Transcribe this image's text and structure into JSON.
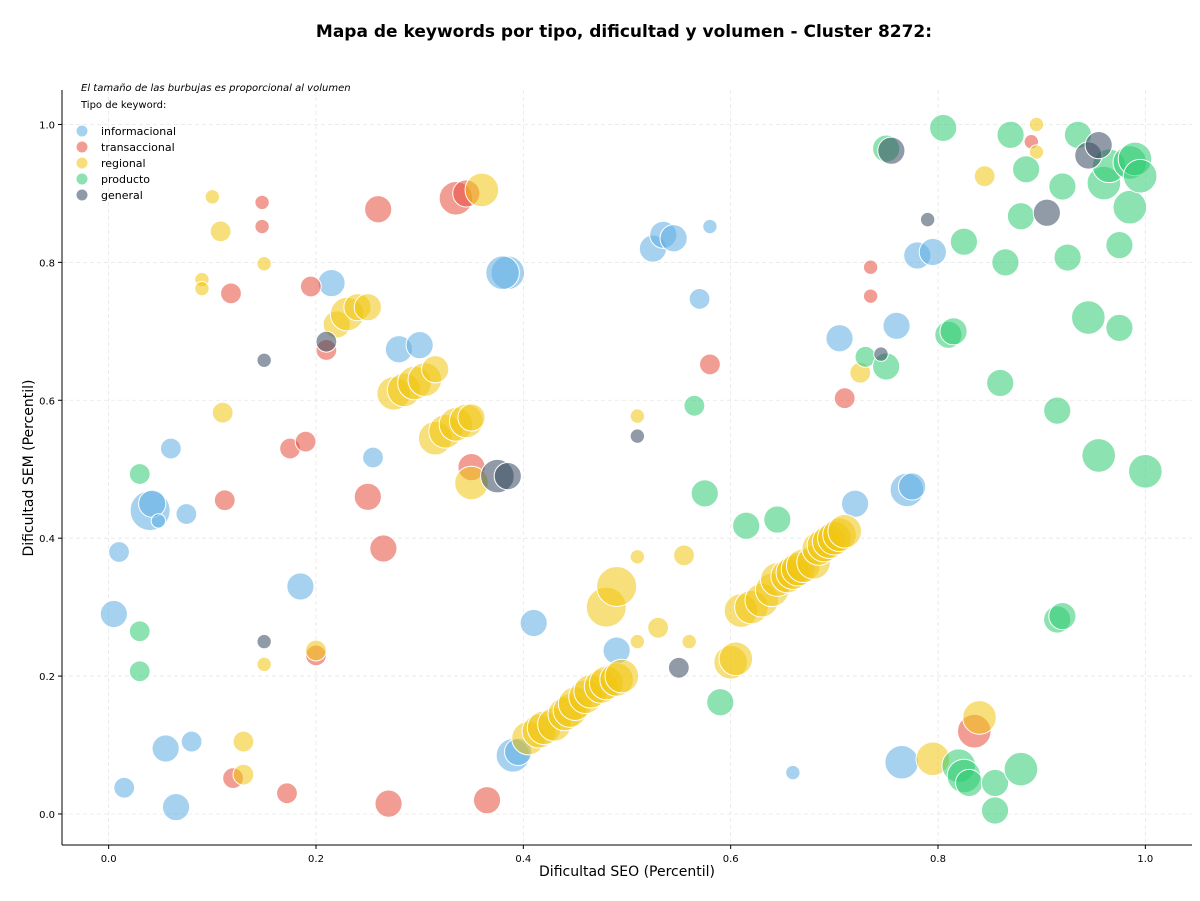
{
  "chart_data": {
    "type": "scatter",
    "title": "Mapa de keywords por tipo, dificultad y volumen - Cluster 8272:",
    "xlabel": "Dificultad SEO (Percentil)",
    "ylabel": "Dificultad SEM (Percentil)",
    "xlim": [
      -0.045,
      1.045
    ],
    "ylim": [
      -0.045,
      1.05
    ],
    "xticks": [
      "0.0",
      "0.2",
      "0.4",
      "0.6",
      "0.8",
      "1.0"
    ],
    "yticks": [
      "0.0",
      "0.2",
      "0.4",
      "0.6",
      "0.8",
      "1.0"
    ],
    "grid": true,
    "note": "El tamaño de las burbujas es proporcional al volumen",
    "legend": {
      "title": "Tipo de keyword:",
      "placement": "top-left",
      "items": [
        {
          "label": "informacional",
          "color": "#5DADE2"
        },
        {
          "label": "transaccional",
          "color": "#E74C3C"
        },
        {
          "label": "regional",
          "color": "#F1C40F"
        },
        {
          "label": "producto",
          "color": "#2ECC71"
        },
        {
          "label": "general",
          "color": "#34495E"
        }
      ]
    },
    "series": [
      {
        "name": "informacional",
        "color": "#5DADE2",
        "points": [
          [
            0.01,
            0.38,
            2
          ],
          [
            0.005,
            0.29,
            3
          ],
          [
            0.015,
            0.038,
            2
          ],
          [
            0.04,
            0.44,
            5
          ],
          [
            0.042,
            0.45,
            3
          ],
          [
            0.048,
            0.425,
            1
          ],
          [
            0.06,
            0.53,
            2
          ],
          [
            0.055,
            0.095,
            3
          ],
          [
            0.075,
            0.435,
            2
          ],
          [
            0.065,
            0.01,
            3
          ],
          [
            0.08,
            0.105,
            2
          ],
          [
            0.185,
            0.33,
            3
          ],
          [
            0.215,
            0.77,
            3
          ],
          [
            0.255,
            0.517,
            2
          ],
          [
            0.28,
            0.674,
            3
          ],
          [
            0.3,
            0.68,
            3
          ],
          [
            0.385,
            0.785,
            4
          ],
          [
            0.38,
            0.785,
            4
          ],
          [
            0.39,
            0.085,
            4
          ],
          [
            0.395,
            0.09,
            3
          ],
          [
            0.41,
            0.277,
            3
          ],
          [
            0.49,
            0.237,
            3
          ],
          [
            0.525,
            0.82,
            3
          ],
          [
            0.535,
            0.84,
            3
          ],
          [
            0.545,
            0.835,
            3
          ],
          [
            0.57,
            0.747,
            2
          ],
          [
            0.58,
            0.852,
            1
          ],
          [
            0.66,
            0.06,
            1
          ],
          [
            0.705,
            0.69,
            3
          ],
          [
            0.72,
            0.45,
            3
          ],
          [
            0.76,
            0.708,
            3
          ],
          [
            0.765,
            0.075,
            4
          ],
          [
            0.77,
            0.47,
            4
          ],
          [
            0.775,
            0.475,
            3
          ],
          [
            0.78,
            0.81,
            3
          ],
          [
            0.795,
            0.815,
            3
          ]
        ]
      },
      {
        "name": "transaccional",
        "color": "#E74C3C",
        "points": [
          [
            0.118,
            0.755,
            2
          ],
          [
            0.148,
            0.887,
            1
          ],
          [
            0.148,
            0.852,
            1
          ],
          [
            0.112,
            0.455,
            2
          ],
          [
            0.12,
            0.052,
            2
          ],
          [
            0.172,
            0.03,
            2
          ],
          [
            0.175,
            0.53,
            2
          ],
          [
            0.19,
            0.54,
            2
          ],
          [
            0.195,
            0.765,
            2
          ],
          [
            0.2,
            0.23,
            2
          ],
          [
            0.21,
            0.673,
            2
          ],
          [
            0.25,
            0.46,
            3
          ],
          [
            0.26,
            0.877,
            3
          ],
          [
            0.265,
            0.385,
            3
          ],
          [
            0.27,
            0.015,
            3
          ],
          [
            0.335,
            0.893,
            4
          ],
          [
            0.345,
            0.9,
            3
          ],
          [
            0.35,
            0.503,
            3
          ],
          [
            0.365,
            0.02,
            3
          ],
          [
            0.58,
            0.652,
            2
          ],
          [
            0.71,
            0.603,
            2
          ],
          [
            0.735,
            0.793,
            1
          ],
          [
            0.735,
            0.751,
            1
          ],
          [
            0.835,
            0.12,
            4
          ],
          [
            0.89,
            0.975,
            1
          ]
        ]
      },
      {
        "name": "regional",
        "color": "#F1C40F",
        "points": [
          [
            0.1,
            0.895,
            1
          ],
          [
            0.108,
            0.845,
            2
          ],
          [
            0.09,
            0.775,
            1
          ],
          [
            0.09,
            0.762,
            1
          ],
          [
            0.15,
            0.798,
            1
          ],
          [
            0.11,
            0.582,
            2
          ],
          [
            0.13,
            0.105,
            2
          ],
          [
            0.13,
            0.057,
            2
          ],
          [
            0.15,
            0.217,
            1
          ],
          [
            0.2,
            0.237,
            2
          ],
          [
            0.22,
            0.71,
            3
          ],
          [
            0.23,
            0.725,
            4
          ],
          [
            0.24,
            0.735,
            3
          ],
          [
            0.25,
            0.735,
            3
          ],
          [
            0.275,
            0.61,
            4
          ],
          [
            0.285,
            0.615,
            4
          ],
          [
            0.295,
            0.625,
            4
          ],
          [
            0.305,
            0.63,
            4
          ],
          [
            0.315,
            0.645,
            3
          ],
          [
            0.315,
            0.545,
            4
          ],
          [
            0.325,
            0.555,
            4
          ],
          [
            0.335,
            0.565,
            4
          ],
          [
            0.345,
            0.57,
            4
          ],
          [
            0.35,
            0.575,
            3
          ],
          [
            0.36,
            0.905,
            4
          ],
          [
            0.35,
            0.48,
            4
          ],
          [
            0.405,
            0.11,
            4
          ],
          [
            0.415,
            0.12,
            4
          ],
          [
            0.42,
            0.125,
            4
          ],
          [
            0.43,
            0.13,
            4
          ],
          [
            0.44,
            0.145,
            4
          ],
          [
            0.445,
            0.15,
            4
          ],
          [
            0.45,
            0.16,
            4
          ],
          [
            0.46,
            0.17,
            4
          ],
          [
            0.465,
            0.178,
            4
          ],
          [
            0.475,
            0.185,
            4
          ],
          [
            0.48,
            0.19,
            4
          ],
          [
            0.49,
            0.195,
            4
          ],
          [
            0.495,
            0.2,
            4
          ],
          [
            0.48,
            0.3,
            5
          ],
          [
            0.49,
            0.33,
            5
          ],
          [
            0.51,
            0.373,
            1
          ],
          [
            0.51,
            0.577,
            1
          ],
          [
            0.51,
            0.25,
            1
          ],
          [
            0.53,
            0.27,
            2
          ],
          [
            0.555,
            0.375,
            2
          ],
          [
            0.56,
            0.25,
            1
          ],
          [
            0.6,
            0.22,
            4
          ],
          [
            0.605,
            0.225,
            4
          ],
          [
            0.61,
            0.295,
            4
          ],
          [
            0.62,
            0.3,
            4
          ],
          [
            0.63,
            0.31,
            4
          ],
          [
            0.64,
            0.325,
            4
          ],
          [
            0.645,
            0.34,
            4
          ],
          [
            0.655,
            0.345,
            4
          ],
          [
            0.66,
            0.35,
            4
          ],
          [
            0.665,
            0.355,
            4
          ],
          [
            0.67,
            0.36,
            4
          ],
          [
            0.68,
            0.365,
            4
          ],
          [
            0.685,
            0.385,
            4
          ],
          [
            0.69,
            0.39,
            4
          ],
          [
            0.695,
            0.395,
            4
          ],
          [
            0.7,
            0.4,
            4
          ],
          [
            0.705,
            0.405,
            4
          ],
          [
            0.71,
            0.41,
            4
          ],
          [
            0.725,
            0.64,
            2
          ],
          [
            0.795,
            0.08,
            4
          ],
          [
            0.84,
            0.14,
            4
          ],
          [
            0.845,
            0.925,
            2
          ],
          [
            0.895,
            1.0,
            1
          ],
          [
            0.895,
            0.96,
            1
          ]
        ]
      },
      {
        "name": "producto",
        "color": "#2ECC71",
        "points": [
          [
            0.03,
            0.493,
            2
          ],
          [
            0.03,
            0.265,
            2
          ],
          [
            0.03,
            0.207,
            2
          ],
          [
            0.565,
            0.592,
            2
          ],
          [
            0.575,
            0.465,
            3
          ],
          [
            0.59,
            0.162,
            3
          ],
          [
            0.615,
            0.418,
            3
          ],
          [
            0.645,
            0.427,
            3
          ],
          [
            0.73,
            0.663,
            2
          ],
          [
            0.75,
            0.649,
            3
          ],
          [
            0.75,
            0.965,
            3
          ],
          [
            0.81,
            0.695,
            3
          ],
          [
            0.815,
            0.7,
            3
          ],
          [
            0.82,
            0.07,
            4
          ],
          [
            0.825,
            0.055,
            4
          ],
          [
            0.825,
            0.83,
            3
          ],
          [
            0.83,
            0.045,
            3
          ],
          [
            0.855,
            0.005,
            3
          ],
          [
            0.855,
            0.045,
            3
          ],
          [
            0.86,
            0.625,
            3
          ],
          [
            0.865,
            0.8,
            3
          ],
          [
            0.87,
            0.985,
            3
          ],
          [
            0.88,
            0.065,
            4
          ],
          [
            0.88,
            0.867,
            3
          ],
          [
            0.885,
            0.935,
            3
          ],
          [
            0.915,
            0.585,
            3
          ],
          [
            0.915,
            0.282,
            3
          ],
          [
            0.92,
            0.287,
            3
          ],
          [
            0.92,
            0.91,
            3
          ],
          [
            0.925,
            0.807,
            3
          ],
          [
            0.935,
            0.985,
            3
          ],
          [
            0.945,
            0.72,
            4
          ],
          [
            0.955,
            0.52,
            4
          ],
          [
            0.96,
            0.915,
            4
          ],
          [
            0.965,
            0.94,
            4
          ],
          [
            0.975,
            0.705,
            3
          ],
          [
            0.975,
            0.825,
            3
          ],
          [
            0.985,
            0.88,
            4
          ],
          [
            0.985,
            0.945,
            4
          ],
          [
            0.99,
            0.95,
            4
          ],
          [
            0.995,
            0.925,
            4
          ],
          [
            1.0,
            0.497,
            4
          ],
          [
            0.805,
            0.995,
            3
          ]
        ]
      },
      {
        "name": "general",
        "color": "#34495E",
        "points": [
          [
            0.15,
            0.658,
            1
          ],
          [
            0.15,
            0.25,
            1
          ],
          [
            0.21,
            0.685,
            2
          ],
          [
            0.375,
            0.49,
            4
          ],
          [
            0.385,
            0.49,
            3
          ],
          [
            0.51,
            0.548,
            1
          ],
          [
            0.55,
            0.212,
            2
          ],
          [
            0.745,
            0.667,
            1
          ],
          [
            0.755,
            0.962,
            3
          ],
          [
            0.79,
            0.862,
            1
          ],
          [
            0.905,
            0.872,
            3
          ],
          [
            0.945,
            0.955,
            3
          ],
          [
            0.955,
            0.97,
            3
          ]
        ]
      }
    ]
  }
}
